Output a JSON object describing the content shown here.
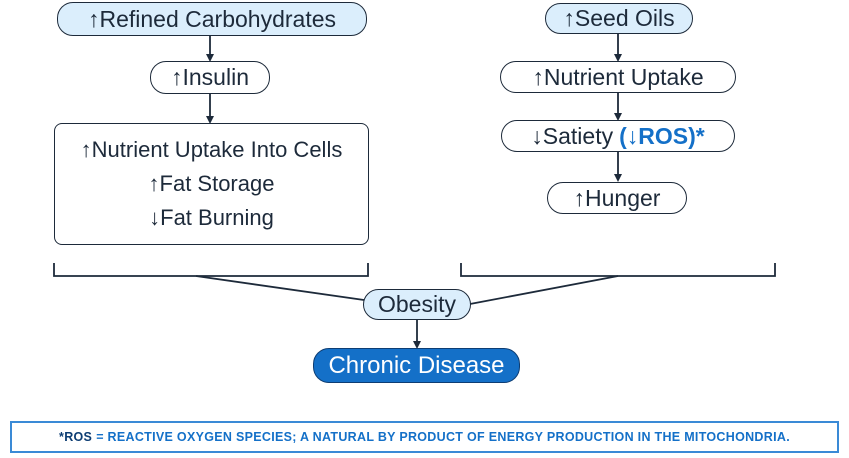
{
  "left_column": {
    "refined_carbs": "↑Refined Carbohydrates",
    "insulin": "↑Insulin",
    "effects": [
      "↑Nutrient Uptake Into Cells",
      "↑Fat Storage",
      "↓Fat Burning"
    ]
  },
  "right_column": {
    "seed_oils": "↑Seed Oils",
    "nutrient_uptake": "↑Nutrient Uptake",
    "satiety": "↓Satiety",
    "ros_note": "(↓ROS)*",
    "hunger": "↑Hunger"
  },
  "center": {
    "obesity": "Obesity",
    "chronic_disease": "Chronic Disease"
  },
  "footnote": {
    "key": "*ROS",
    "text": "= REACTIVE OXYGEN SPECIES; A NATURAL BY PRODUCT OF ENERGY PRODUCTION IN THE MITOCHONDRIA."
  },
  "colors": {
    "node_light": "#dbeefc",
    "node_dark": "#1470c8",
    "accent": "#1470c8",
    "line": "#1d2a3a"
  }
}
